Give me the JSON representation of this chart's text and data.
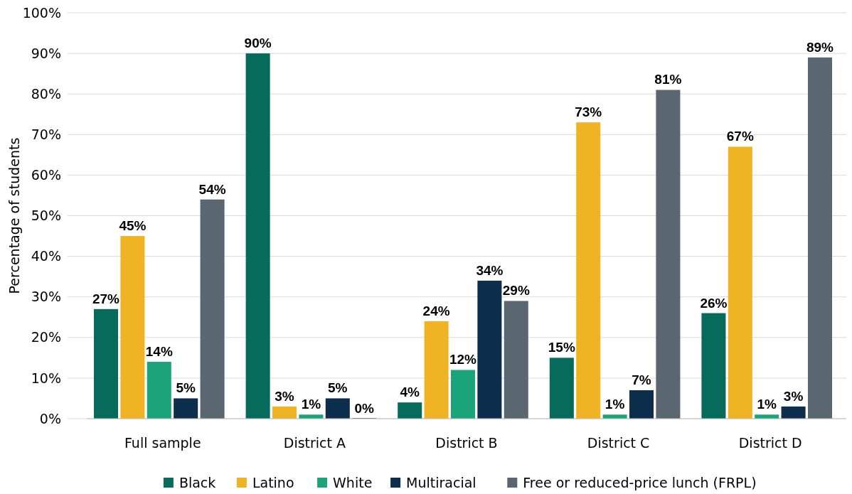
{
  "chart_data": {
    "type": "bar",
    "ylabel": "Percentage of students",
    "categories": [
      "Full sample",
      "District A",
      "District B",
      "District C",
      "District D"
    ],
    "series": [
      {
        "name": "Black",
        "color": "#076b5c",
        "values": [
          27,
          90,
          4,
          15,
          26
        ],
        "value_labels": [
          "27%",
          "90%",
          "4%",
          "15%",
          "26%"
        ]
      },
      {
        "name": "Latino",
        "color": "#f0b323",
        "values": [
          45,
          3,
          24,
          73,
          67
        ],
        "value_labels": [
          "45%",
          "3%",
          "24%",
          "73%",
          "67%"
        ]
      },
      {
        "name": "White",
        "color": "#1ba37a",
        "values": [
          14,
          1,
          12,
          1,
          1
        ],
        "value_labels": [
          "14%",
          "1%",
          "12%",
          "1%",
          "1%"
        ]
      },
      {
        "name": "Multiracial",
        "color": "#0c2d4b",
        "values": [
          5,
          5,
          34,
          7,
          3
        ],
        "value_labels": [
          "5%",
          "5%",
          "34%",
          "7%",
          "3%"
        ]
      },
      {
        "name": "Free or reduced-price lunch (FRPL)",
        "color": "#5b6770",
        "values": [
          54,
          0,
          29,
          81,
          89
        ],
        "value_labels": [
          "54%",
          "0%",
          "29%",
          "81%",
          "89%"
        ]
      }
    ],
    "ylim": [
      0,
      100
    ],
    "yticks": [
      {
        "value": 0,
        "label": "0%"
      },
      {
        "value": 10,
        "label": "10%"
      },
      {
        "value": 20,
        "label": "20%"
      },
      {
        "value": 30,
        "label": "30%"
      },
      {
        "value": 40,
        "label": "40%"
      },
      {
        "value": 50,
        "label": "50%"
      },
      {
        "value": 60,
        "label": "60%"
      },
      {
        "value": 70,
        "label": "70%"
      },
      {
        "value": 80,
        "label": "80%"
      },
      {
        "value": 90,
        "label": "90%"
      },
      {
        "value": 100,
        "label": "100%"
      }
    ],
    "grid": "y",
    "legend": "bottom"
  }
}
